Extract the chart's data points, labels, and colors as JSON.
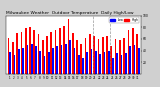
{
  "title": "Milwaukee Weather  Outdoor Temperature  Daily High/Low",
  "title_fontsize": 3.2,
  "background_color": "#d0d0d0",
  "plot_bg_color": "#ffffff",
  "bar_width": 0.4,
  "days": [
    "1",
    "2",
    "3",
    "4",
    "5",
    "6",
    "7",
    "8",
    "9",
    "10",
    "11",
    "12",
    "13",
    "14",
    "15",
    "16",
    "17",
    "18",
    "19",
    "20",
    "21",
    "22",
    "23",
    "24",
    "25",
    "26",
    "27",
    "28",
    "29",
    "30",
    "31"
  ],
  "highs": [
    62,
    55,
    70,
    72,
    78,
    80,
    76,
    68,
    58,
    65,
    72,
    75,
    78,
    82,
    95,
    70,
    58,
    52,
    62,
    68,
    65,
    60,
    63,
    65,
    48,
    60,
    58,
    62,
    75,
    78,
    68
  ],
  "lows": [
    38,
    32,
    42,
    45,
    50,
    52,
    48,
    40,
    30,
    38,
    45,
    48,
    50,
    52,
    58,
    45,
    32,
    28,
    38,
    42,
    40,
    35,
    38,
    40,
    28,
    36,
    32,
    36,
    48,
    50,
    45
  ],
  "high_color": "#ff0000",
  "low_color": "#0000ff",
  "dashed_lines": [
    19.5,
    23.5
  ],
  "ylim": [
    0,
    100
  ],
  "yticks": [
    20,
    40,
    60,
    80,
    100
  ],
  "ytick_labels": [
    "20",
    "40",
    "60",
    "80",
    "100"
  ]
}
